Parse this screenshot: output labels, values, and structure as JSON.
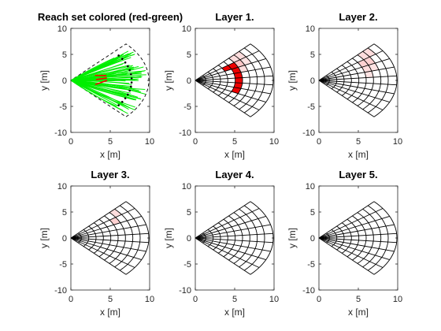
{
  "figure": {
    "background": "#ffffff"
  },
  "chart_data": [
    {
      "id": "reach",
      "type": "scatter",
      "title": "Reach set colored (red-green)",
      "xlabel": "x [m]",
      "ylabel": "y [m]",
      "xlim": [
        0,
        10
      ],
      "ylim": [
        -10,
        10
      ],
      "xticks": [
        0,
        5,
        10
      ],
      "yticks": [
        -10,
        -5,
        0,
        5,
        10
      ],
      "grid": false,
      "sector": {
        "half_angle_deg": 45,
        "r_max": 9.9,
        "boundary_style": "dashed"
      },
      "colors": {
        "success": "#00ee00",
        "collision": "#ff0000"
      }
    },
    {
      "id": "layer1",
      "type": "heatmap",
      "title": "Layer 1.",
      "xlabel": "x [m]",
      "ylabel": "y [m]",
      "xlim": [
        0,
        10
      ],
      "ylim": [
        -10,
        10
      ],
      "xticks": [
        0,
        5,
        10
      ],
      "yticks": [
        -10,
        -5,
        0,
        5,
        10
      ],
      "grid_polar": {
        "radii": [
          0.4,
          1.33,
          2.27,
          3.2,
          4.13,
          5.07,
          6.0,
          6.93,
          7.87,
          8.8,
          9.9
        ],
        "half_angle_deg": 45,
        "n_sectors": 9
      },
      "cells": [
        {
          "ring": 5,
          "sector": 4,
          "value": 1
        },
        {
          "ring": 5,
          "sector": 5,
          "value": 1
        },
        {
          "ring": 5,
          "sector": 3,
          "value": 1
        },
        {
          "ring": 5,
          "sector": 6,
          "value": 1
        },
        {
          "ring": 5,
          "sector": 2,
          "value": 1
        },
        {
          "ring": 5,
          "sector": 7,
          "value": 1
        },
        {
          "ring": 4,
          "sector": 7,
          "value": 1
        },
        {
          "ring": 6,
          "sector": 7,
          "value": 0.25
        },
        {
          "ring": 6,
          "sector": 8,
          "value": 0.15
        },
        {
          "ring": 7,
          "sector": 8,
          "value": 0.15
        },
        {
          "ring": 6,
          "sector": 6,
          "value": 0.15
        },
        {
          "ring": 7,
          "sector": 7,
          "value": 0.12
        }
      ]
    },
    {
      "id": "layer2",
      "type": "heatmap",
      "title": "Layer 2.",
      "xlabel": "x [m]",
      "ylabel": "y [m]",
      "xlim": [
        0,
        10
      ],
      "ylim": [
        -10,
        10
      ],
      "xticks": [
        0,
        5,
        10
      ],
      "yticks": [
        -10,
        -5,
        0,
        5,
        10
      ],
      "cells": [
        {
          "ring": 6,
          "sector": 7,
          "value": 0.2
        },
        {
          "ring": 7,
          "sector": 7,
          "value": 0.2
        },
        {
          "ring": 7,
          "sector": 8,
          "value": 0.15
        },
        {
          "ring": 8,
          "sector": 8,
          "value": 0.15
        },
        {
          "ring": 6,
          "sector": 6,
          "value": 0.15
        },
        {
          "ring": 7,
          "sector": 6,
          "value": 0.12
        },
        {
          "ring": 6,
          "sector": 5,
          "value": 0.12
        }
      ]
    },
    {
      "id": "layer3",
      "type": "heatmap",
      "title": "Layer 3.",
      "xlabel": "x [m]",
      "ylabel": "y [m]",
      "xlim": [
        0,
        10
      ],
      "ylim": [
        -10,
        10
      ],
      "xticks": [
        0,
        5,
        10
      ],
      "yticks": [
        -10,
        -5,
        0,
        5,
        10
      ],
      "cells": [
        {
          "ring": 6,
          "sector": 7,
          "value": 0.2
        },
        {
          "ring": 7,
          "sector": 8,
          "value": 0.15
        }
      ]
    },
    {
      "id": "layer4",
      "type": "heatmap",
      "title": "Layer 4.",
      "xlabel": "x [m]",
      "ylabel": "y [m]",
      "xlim": [
        0,
        10
      ],
      "ylim": [
        -10,
        10
      ],
      "xticks": [
        0,
        5,
        10
      ],
      "yticks": [
        -10,
        -5,
        0,
        5,
        10
      ],
      "cells": []
    },
    {
      "id": "layer5",
      "type": "heatmap",
      "title": "Layer 5.",
      "xlabel": "x [m]",
      "ylabel": "y [m]",
      "xlim": [
        0,
        10
      ],
      "ylim": [
        -10,
        10
      ],
      "xticks": [
        0,
        5,
        10
      ],
      "yticks": [
        -10,
        -5,
        0,
        5,
        10
      ],
      "cells": []
    }
  ]
}
